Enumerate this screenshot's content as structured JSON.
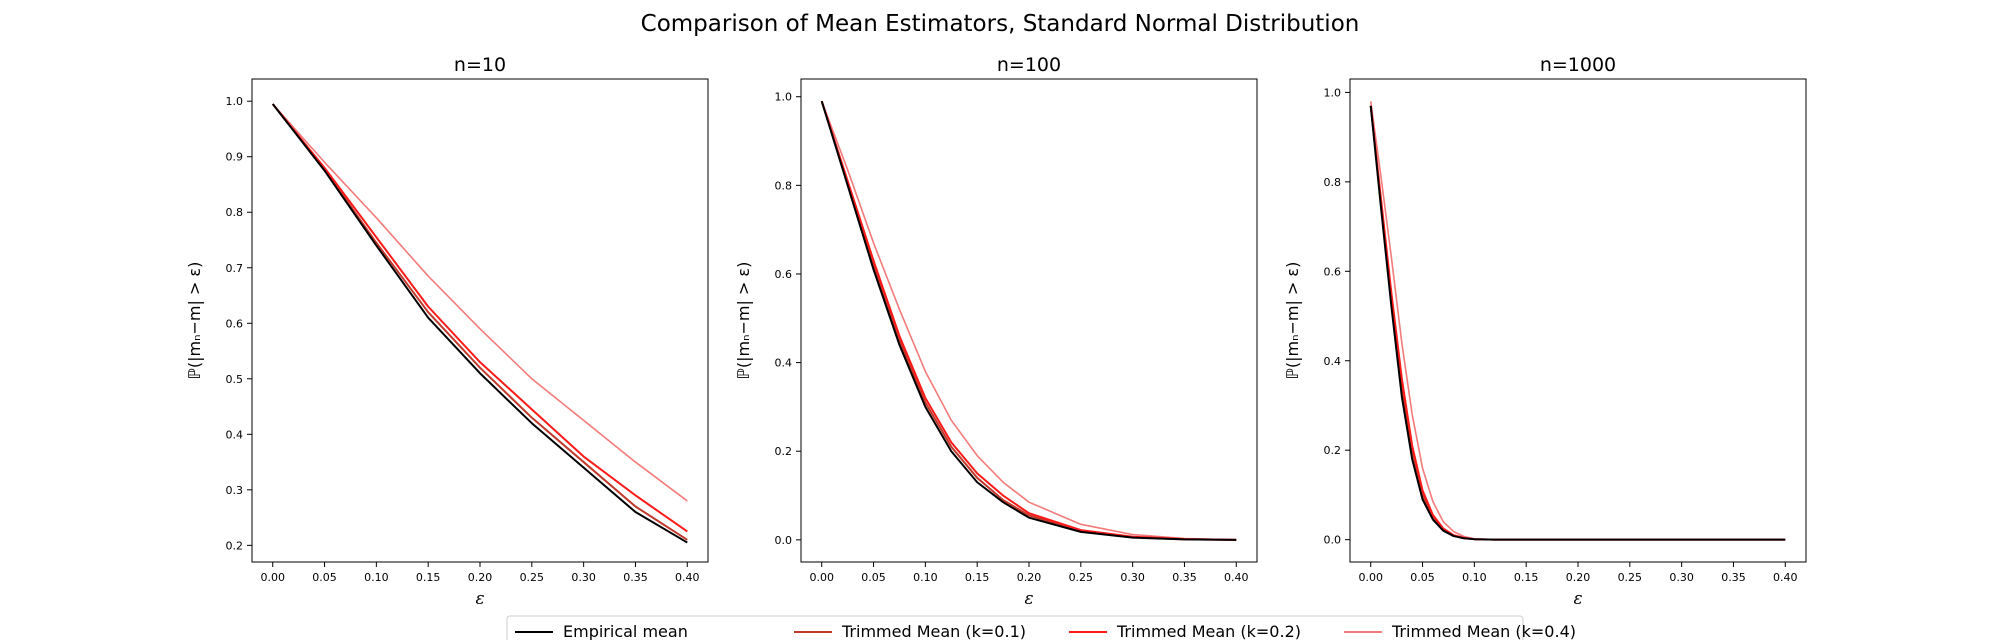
{
  "suptitle": "Comparison of Mean Estimators, Standard Normal Distribution",
  "colors": {
    "Empirical mean": "#000000",
    "Trimmed Mean (k=0.1)": "#c0392b",
    "Trimmed Mean (k=0.2)": "#ff1a1a",
    "Trimmed Mean (k=0.4)": "#f47b7b"
  },
  "legend": [
    "Empirical mean",
    "Trimmed Mean (k=0.1)",
    "Trimmed Mean (k=0.2)",
    "Trimmed Mean (k=0.4)"
  ],
  "chart_data": [
    {
      "type": "line",
      "title": "n=10",
      "xlabel": "ε",
      "ylabel": "ℙ(|mₙ−m| > ε)",
      "xlim": [
        -0.02,
        0.42
      ],
      "ylim": [
        0.17,
        1.04
      ],
      "xticks": [
        "0.00",
        "0.05",
        "0.10",
        "0.15",
        "0.20",
        "0.25",
        "0.30",
        "0.35",
        "0.40"
      ],
      "yticks": [
        "0.2",
        "0.3",
        "0.4",
        "0.5",
        "0.6",
        "0.7",
        "0.8",
        "0.9",
        "1.0"
      ],
      "x": [
        0.0,
        0.05,
        0.1,
        0.15,
        0.2,
        0.25,
        0.3,
        0.35,
        0.4
      ],
      "series": [
        {
          "name": "Empirical mean",
          "values": [
            0.995,
            0.875,
            0.74,
            0.61,
            0.51,
            0.42,
            0.34,
            0.26,
            0.205
          ]
        },
        {
          "name": "Trimmed Mean (k=0.1)",
          "values": [
            0.995,
            0.877,
            0.745,
            0.62,
            0.52,
            0.43,
            0.35,
            0.27,
            0.21
          ]
        },
        {
          "name": "Trimmed Mean (k=0.2)",
          "values": [
            0.995,
            0.88,
            0.755,
            0.63,
            0.53,
            0.445,
            0.36,
            0.29,
            0.225
          ]
        },
        {
          "name": "Trimmed Mean (k=0.4)",
          "values": [
            0.995,
            0.89,
            0.79,
            0.685,
            0.59,
            0.5,
            0.425,
            0.35,
            0.28
          ]
        }
      ]
    },
    {
      "type": "line",
      "title": "n=100",
      "xlabel": "ε",
      "ylabel": "ℙ(|mₙ−m| > ε)",
      "xlim": [
        -0.02,
        0.42
      ],
      "ylim": [
        -0.05,
        1.04
      ],
      "xticks": [
        "0.00",
        "0.05",
        "0.10",
        "0.15",
        "0.20",
        "0.25",
        "0.30",
        "0.35",
        "0.40"
      ],
      "yticks": [
        "0.0",
        "0.2",
        "0.4",
        "0.6",
        "0.8",
        "1.0"
      ],
      "x": [
        0.0,
        0.025,
        0.05,
        0.075,
        0.1,
        0.125,
        0.15,
        0.175,
        0.2,
        0.25,
        0.3,
        0.35,
        0.4
      ],
      "series": [
        {
          "name": "Empirical mean",
          "values": [
            0.99,
            0.8,
            0.61,
            0.44,
            0.3,
            0.2,
            0.13,
            0.085,
            0.05,
            0.018,
            0.005,
            0.001,
            0.0
          ]
        },
        {
          "name": "Trimmed Mean (k=0.1)",
          "values": [
            0.99,
            0.805,
            0.62,
            0.45,
            0.31,
            0.21,
            0.14,
            0.09,
            0.055,
            0.02,
            0.006,
            0.001,
            0.0
          ]
        },
        {
          "name": "Trimmed Mean (k=0.2)",
          "values": [
            0.99,
            0.81,
            0.63,
            0.46,
            0.32,
            0.22,
            0.15,
            0.1,
            0.06,
            0.022,
            0.007,
            0.002,
            0.0
          ]
        },
        {
          "name": "Trimmed Mean (k=0.4)",
          "values": [
            0.99,
            0.835,
            0.67,
            0.52,
            0.38,
            0.27,
            0.19,
            0.13,
            0.085,
            0.035,
            0.012,
            0.003,
            0.0
          ]
        }
      ]
    },
    {
      "type": "line",
      "title": "n=1000",
      "xlabel": "ε",
      "ylabel": "ℙ(|mₙ−m| > ε)",
      "xlim": [
        -0.02,
        0.42
      ],
      "ylim": [
        -0.05,
        1.03
      ],
      "xticks": [
        "0.00",
        "0.05",
        "0.10",
        "0.15",
        "0.20",
        "0.25",
        "0.30",
        "0.35",
        "0.40"
      ],
      "yticks": [
        "0.0",
        "0.2",
        "0.4",
        "0.6",
        "0.8",
        "1.0"
      ],
      "x": [
        0.0,
        0.01,
        0.02,
        0.03,
        0.04,
        0.05,
        0.06,
        0.07,
        0.08,
        0.09,
        0.1,
        0.12,
        0.15,
        0.2,
        0.4
      ],
      "series": [
        {
          "name": "Empirical mean",
          "values": [
            0.97,
            0.74,
            0.52,
            0.32,
            0.18,
            0.09,
            0.045,
            0.02,
            0.008,
            0.003,
            0.001,
            0.0,
            0.0,
            0.0,
            0.0
          ]
        },
        {
          "name": "Trimmed Mean (k=0.1)",
          "values": [
            0.97,
            0.75,
            0.54,
            0.34,
            0.2,
            0.1,
            0.05,
            0.022,
            0.009,
            0.003,
            0.001,
            0.0,
            0.0,
            0.0,
            0.0
          ]
        },
        {
          "name": "Trimmed Mean (k=0.2)",
          "values": [
            0.97,
            0.76,
            0.55,
            0.36,
            0.21,
            0.11,
            0.055,
            0.025,
            0.01,
            0.004,
            0.001,
            0.0,
            0.0,
            0.0,
            0.0
          ]
        },
        {
          "name": "Trimmed Mean (k=0.4)",
          "values": [
            0.98,
            0.81,
            0.63,
            0.44,
            0.28,
            0.16,
            0.085,
            0.04,
            0.018,
            0.007,
            0.002,
            0.0,
            0.0,
            0.0,
            0.0
          ]
        }
      ]
    }
  ]
}
